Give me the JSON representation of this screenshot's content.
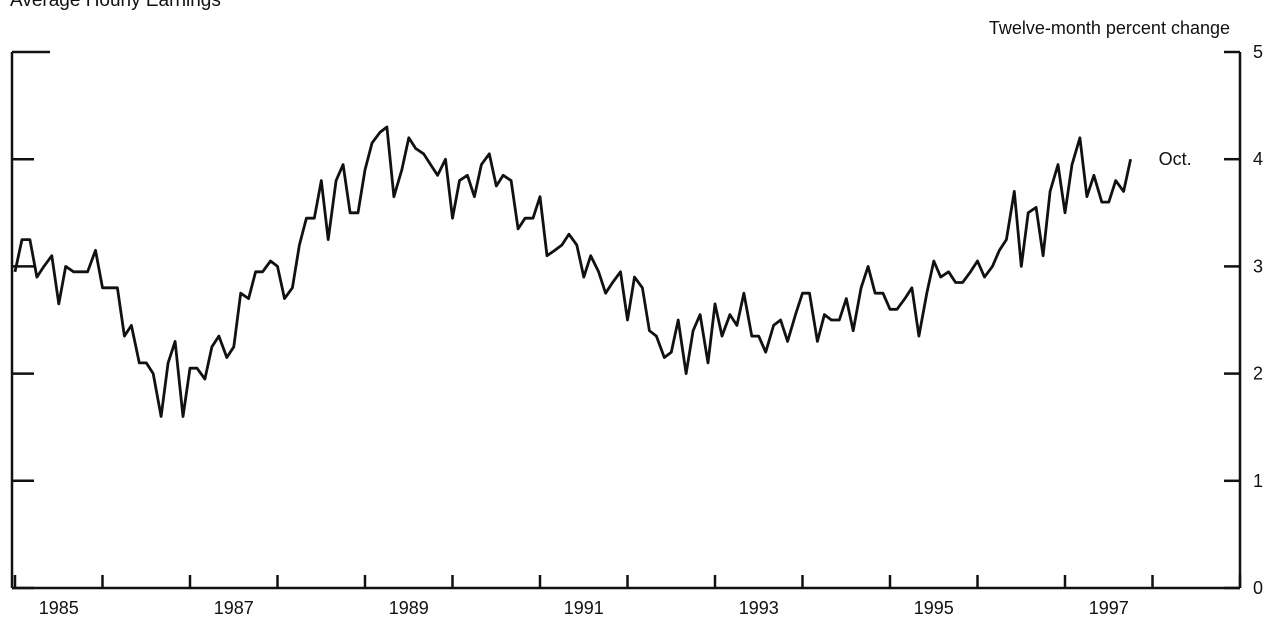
{
  "chart_data": {
    "type": "line",
    "title": "Average Hourly Earnings",
    "y_axis_label": "Twelve-month percent change",
    "annotation": "Oct.",
    "color": "#111111",
    "x": [
      1985.0,
      1985.08,
      1985.17,
      1985.25,
      1985.33,
      1985.42,
      1985.5,
      1985.58,
      1985.67,
      1985.75,
      1985.83,
      1985.92,
      1986.0,
      1986.08,
      1986.17,
      1986.25,
      1986.33,
      1986.42,
      1986.5,
      1986.58,
      1986.67,
      1986.75,
      1986.83,
      1986.92,
      1987.0,
      1987.08,
      1987.17,
      1987.25,
      1987.33,
      1987.42,
      1987.5,
      1987.58,
      1987.67,
      1987.75,
      1987.83,
      1987.92,
      1988.0,
      1988.08,
      1988.17,
      1988.25,
      1988.33,
      1988.42,
      1988.5,
      1988.58,
      1988.67,
      1988.75,
      1988.83,
      1988.92,
      1989.0,
      1989.08,
      1989.17,
      1989.25,
      1989.33,
      1989.42,
      1989.5,
      1989.58,
      1989.67,
      1989.75,
      1989.83,
      1989.92,
      1990.0,
      1990.08,
      1990.17,
      1990.25,
      1990.33,
      1990.42,
      1990.5,
      1990.58,
      1990.67,
      1990.75,
      1990.83,
      1990.92,
      1991.0,
      1991.08,
      1991.17,
      1991.25,
      1991.33,
      1991.42,
      1991.5,
      1991.58,
      1991.67,
      1991.75,
      1991.83,
      1991.92,
      1992.0,
      1992.08,
      1992.17,
      1992.25,
      1992.33,
      1992.42,
      1992.5,
      1992.58,
      1992.67,
      1992.75,
      1992.83,
      1992.92,
      1993.0,
      1993.08,
      1993.17,
      1993.25,
      1993.33,
      1993.42,
      1993.5,
      1993.58,
      1993.67,
      1993.75,
      1993.83,
      1993.92,
      1994.0,
      1994.08,
      1994.17,
      1994.25,
      1994.33,
      1994.42,
      1994.5,
      1994.58,
      1994.67,
      1994.75,
      1994.83,
      1994.92,
      1995.0,
      1995.08,
      1995.17,
      1995.25,
      1995.33,
      1995.42,
      1995.5,
      1995.58,
      1995.67,
      1995.75,
      1995.83,
      1995.92,
      1996.0,
      1996.08,
      1996.17,
      1996.25,
      1996.33,
      1996.42,
      1996.5,
      1996.58,
      1996.67,
      1996.75,
      1996.83,
      1996.92,
      1997.0,
      1997.08,
      1997.17,
      1997.25,
      1997.33,
      1997.42,
      1997.5,
      1997.58,
      1997.67,
      1997.75
    ],
    "values": [
      2.95,
      3.25,
      3.25,
      2.9,
      3.0,
      3.1,
      2.65,
      3.0,
      2.95,
      2.95,
      2.95,
      3.15,
      2.8,
      2.8,
      2.8,
      2.35,
      2.45,
      2.1,
      2.1,
      2.0,
      1.6,
      2.1,
      2.3,
      1.6,
      2.05,
      2.05,
      1.95,
      2.25,
      2.35,
      2.15,
      2.25,
      2.75,
      2.7,
      2.95,
      2.95,
      3.05,
      3.0,
      2.7,
      2.8,
      3.2,
      3.45,
      3.45,
      3.8,
      3.25,
      3.8,
      3.95,
      3.5,
      3.5,
      3.9,
      4.15,
      4.25,
      4.3,
      3.65,
      3.9,
      4.2,
      4.1,
      4.05,
      3.95,
      3.85,
      4.0,
      3.45,
      3.8,
      3.85,
      3.65,
      3.95,
      4.05,
      3.75,
      3.85,
      3.8,
      3.35,
      3.45,
      3.45,
      3.65,
      3.1,
      3.15,
      3.2,
      3.3,
      3.2,
      2.9,
      3.1,
      2.95,
      2.75,
      2.85,
      2.95,
      2.5,
      2.9,
      2.8,
      2.4,
      2.35,
      2.15,
      2.2,
      2.5,
      2.0,
      2.4,
      2.55,
      2.1,
      2.65,
      2.35,
      2.55,
      2.45,
      2.75,
      2.35,
      2.35,
      2.2,
      2.45,
      2.5,
      2.3,
      2.55,
      2.75,
      2.75,
      2.3,
      2.55,
      2.5,
      2.5,
      2.7,
      2.4,
      2.8,
      3.0,
      2.75,
      2.75,
      2.6,
      2.6,
      2.7,
      2.8,
      2.35,
      2.75,
      3.05,
      2.9,
      2.95,
      2.85,
      2.85,
      2.95,
      3.05,
      2.9,
      3.0,
      3.15,
      3.25,
      3.7,
      3.0,
      3.5,
      3.55,
      3.1,
      3.7,
      3.95,
      3.5,
      3.95,
      4.2,
      3.65,
      3.85,
      3.6,
      3.6,
      3.8,
      3.7,
      4.0
    ],
    "xlim": [
      1985,
      1999
    ],
    "xticks": [
      1985,
      1986,
      1987,
      1988,
      1989,
      1990,
      1991,
      1992,
      1993,
      1994,
      1995,
      1996,
      1997,
      1998,
      1999
    ],
    "xlabels": [
      {
        "value": 1985.5,
        "label": "1985"
      },
      {
        "value": 1987.5,
        "label": "1987"
      },
      {
        "value": 1989.5,
        "label": "1989"
      },
      {
        "value": 1991.5,
        "label": "1991"
      },
      {
        "value": 1993.5,
        "label": "1993"
      },
      {
        "value": 1995.5,
        "label": "1995"
      },
      {
        "value": 1997.5,
        "label": "1997"
      }
    ],
    "ylim": [
      0,
      5
    ],
    "yticks": [
      0,
      1,
      2,
      3,
      4,
      5
    ]
  }
}
